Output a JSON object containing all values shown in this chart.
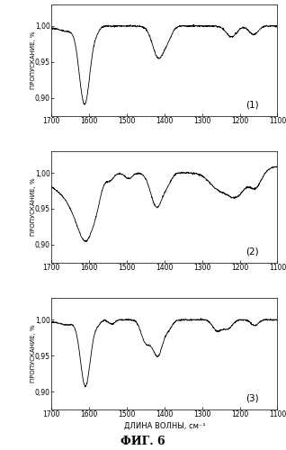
{
  "title": "ФИГ. 6",
  "xlabel": "ДЛИНА ВОЛНЫ, см⁻¹",
  "ylabel": "ПРОПУСКАНИЕ, %",
  "xlim": [
    1700,
    1100
  ],
  "panels": [
    "(1)",
    "(2)",
    "(3)"
  ],
  "yticks": [
    0.9,
    0.95,
    1.0
  ],
  "ytick_labels": [
    "0,90",
    "0,95",
    "1,00"
  ],
  "xticks": [
    1700,
    1600,
    1500,
    1400,
    1300,
    1200,
    1100
  ],
  "background": "#ffffff",
  "line_color": "#000000",
  "ylim": [
    0.875,
    1.03
  ]
}
